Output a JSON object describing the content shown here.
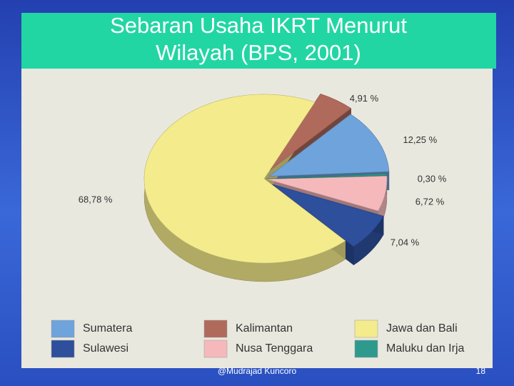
{
  "chart_data": {
    "type": "pie",
    "title": "Sebaran Usaha IKRT Menurut Wilayah (BPS, 2001)",
    "categories": [
      "Kalimantan",
      "Sumatera",
      "Maluku dan Irja",
      "Nusa Tenggara",
      "Sulawesi",
      "Jawa dan Bali"
    ],
    "values": [
      4.91,
      12.25,
      0.3,
      6.72,
      7.04,
      68.78
    ],
    "value_labels": [
      "4,91 %",
      "12,25 %",
      "0,30 %",
      "6,72 %",
      "7,04 %",
      "68,78 %"
    ],
    "colors": [
      "#b06a5c",
      "#6fa3dc",
      "#2e9a8e",
      "#f5b9bb",
      "#2d4f9c",
      "#f4ec8c"
    ]
  },
  "footer": {
    "author": "@Mudrajad Kuncoro",
    "page": 18
  }
}
